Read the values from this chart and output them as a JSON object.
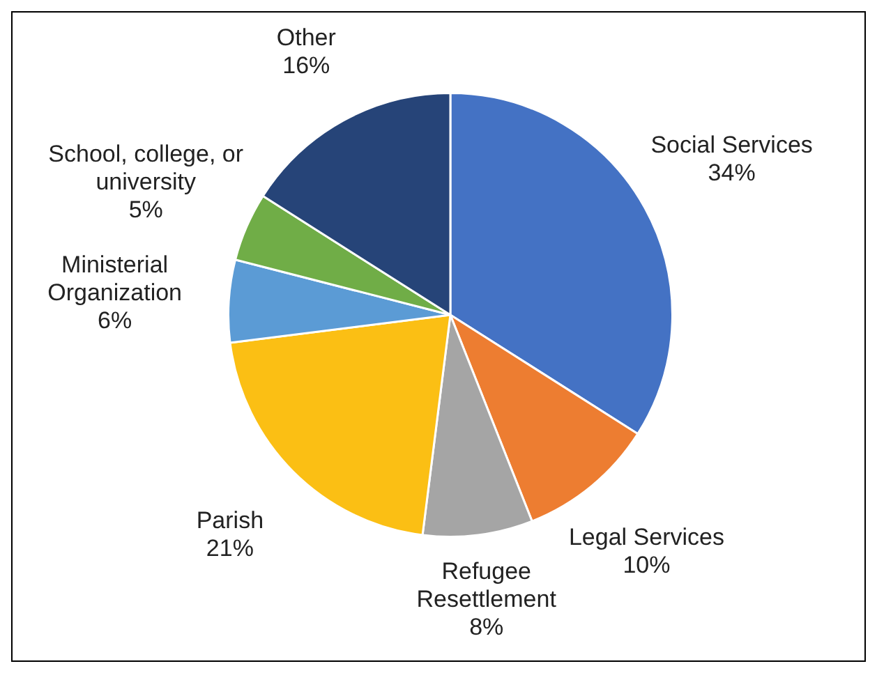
{
  "chart_data": {
    "type": "pie",
    "categories": [
      "Social Services",
      "Legal Services",
      "Refugee Resettlement",
      "Parish",
      "Ministerial Organization",
      "School, college, or university",
      "Other"
    ],
    "values": [
      34,
      10,
      8,
      21,
      6,
      5,
      16
    ],
    "value_labels": [
      "34%",
      "10%",
      "8%",
      "21%",
      "6%",
      "5%",
      "16%"
    ],
    "colors": [
      "#4472c4",
      "#ed7d31",
      "#a5a5a5",
      "#fbbf14",
      "#5b9bd5",
      "#70ad47",
      "#264478"
    ],
    "legend": false
  }
}
